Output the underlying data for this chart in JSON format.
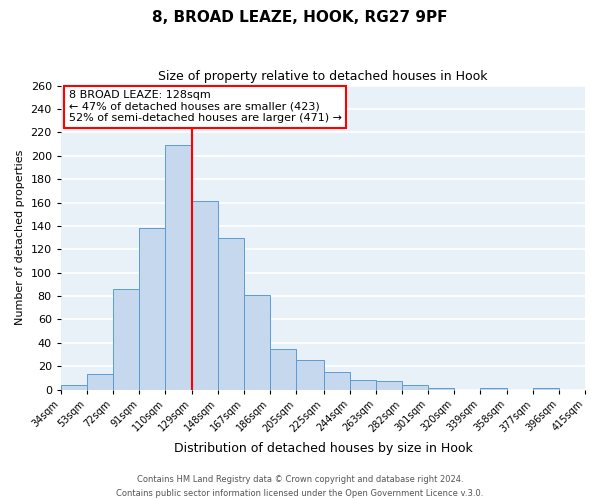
{
  "title": "8, BROAD LEAZE, HOOK, RG27 9PF",
  "subtitle": "Size of property relative to detached houses in Hook",
  "xlabel": "Distribution of detached houses by size in Hook",
  "ylabel": "Number of detached properties",
  "bin_edges": [
    34,
    53,
    72,
    91,
    110,
    129,
    148,
    167,
    186,
    205,
    225,
    244,
    263,
    282,
    301,
    320,
    339,
    358,
    377,
    396,
    415
  ],
  "counts": [
    4,
    13,
    86,
    138,
    209,
    161,
    130,
    81,
    35,
    25,
    15,
    8,
    7,
    4,
    1,
    0,
    1,
    0,
    1,
    0
  ],
  "bar_color": "#c5d8ed",
  "bar_edge_color": "#5b9bd5",
  "property_line_x": 129,
  "property_line_color": "red",
  "annotation_title": "8 BROAD LEAZE: 128sqm",
  "annotation_line1": "← 47% of detached houses are smaller (423)",
  "annotation_line2": "52% of semi-detached houses are larger (471) →",
  "annotation_box_color": "white",
  "annotation_box_edge_color": "red",
  "ylim": [
    0,
    260
  ],
  "yticks": [
    0,
    20,
    40,
    60,
    80,
    100,
    120,
    140,
    160,
    180,
    200,
    220,
    240,
    260
  ],
  "footer_line1": "Contains HM Land Registry data © Crown copyright and database right 2024.",
  "footer_line2": "Contains public sector information licensed under the Open Government Licence v.3.0.",
  "plot_bg_color": "#e8f0f8",
  "fig_bg_color": "#ffffff",
  "grid_color": "#ffffff",
  "title_fontsize": 11,
  "subtitle_fontsize": 9,
  "xlabel_fontsize": 9,
  "ylabel_fontsize": 8,
  "tick_fontsize": 7,
  "annotation_fontsize": 8,
  "footer_fontsize": 6
}
